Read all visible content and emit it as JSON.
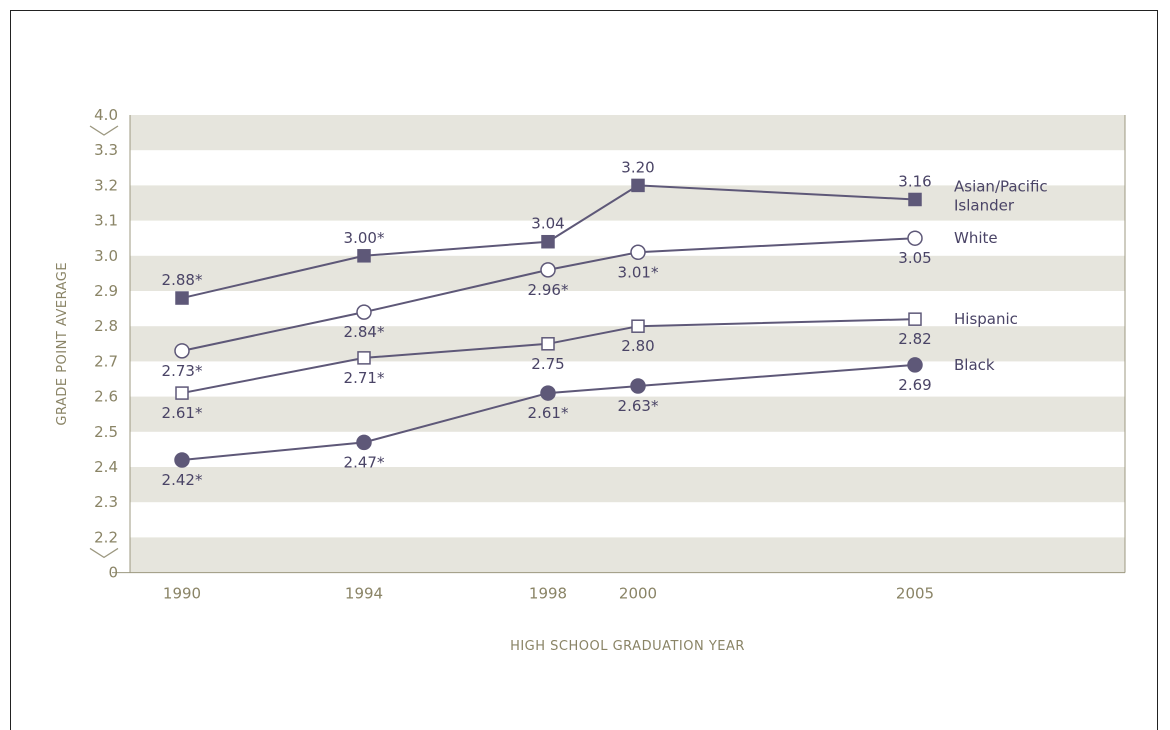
{
  "chart_data": {
    "type": "line",
    "title": "",
    "xlabel": "HIGH SCHOOL GRADUATION YEAR",
    "ylabel": "GRADE POINT AVERAGE",
    "x": [
      1990,
      1994,
      1998,
      2000,
      2005
    ],
    "x_ticks": [
      "1990",
      "1994",
      "1998",
      "2000",
      "2005"
    ],
    "ylim": [
      2.2,
      4.0
    ],
    "y_ticks": [
      "4.0",
      "3.3",
      "3.2",
      "3.1",
      "3.0",
      "2.9",
      "2.8",
      "2.7",
      "2.6",
      "2.5",
      "2.4",
      "2.3",
      "2.2",
      "0"
    ],
    "axis_breaks": "between 3.3 and 4.0; between 0 and 2.2",
    "grid": "alternating horizontal bands",
    "legend": "series labels at right end of lines",
    "series": [
      {
        "name": "Asian/Pacific Islander",
        "name_lines": [
          "Asian/Pacific",
          "Islander"
        ],
        "marker": "filled-square",
        "values": [
          2.88,
          3.0,
          3.04,
          3.2,
          3.16
        ],
        "labels": [
          "2.88*",
          "3.00*",
          "3.04",
          "3.20",
          "3.16"
        ],
        "label_pos": [
          "above",
          "above",
          "above",
          "above",
          "above"
        ]
      },
      {
        "name": "White",
        "name_lines": [
          "White"
        ],
        "marker": "open-circle",
        "values": [
          2.73,
          2.84,
          2.96,
          3.01,
          3.05
        ],
        "labels": [
          "2.73*",
          "2.84*",
          "2.96*",
          "3.01*",
          "3.05"
        ],
        "label_pos": [
          "below",
          "below",
          "below",
          "below",
          "below"
        ]
      },
      {
        "name": "Hispanic",
        "name_lines": [
          "Hispanic"
        ],
        "marker": "open-square",
        "values": [
          2.61,
          2.71,
          2.75,
          2.8,
          2.82
        ],
        "labels": [
          "2.61*",
          "2.71*",
          "2.75",
          "2.80",
          "2.82"
        ],
        "label_pos": [
          "below",
          "below",
          "below",
          "below",
          "below"
        ]
      },
      {
        "name": "Black",
        "name_lines": [
          "Black"
        ],
        "marker": "filled-circle",
        "values": [
          2.42,
          2.47,
          2.61,
          2.63,
          2.69
        ],
        "labels": [
          "2.42*",
          "2.47*",
          "2.61*",
          "2.63*",
          "2.69"
        ],
        "label_pos": [
          "below",
          "below",
          "below",
          "below",
          "below"
        ]
      }
    ],
    "colors": {
      "line": "#5e5878",
      "band": "#e6e5dd",
      "axis_text": "#8a8466",
      "label_text": "#4a4466"
    }
  }
}
